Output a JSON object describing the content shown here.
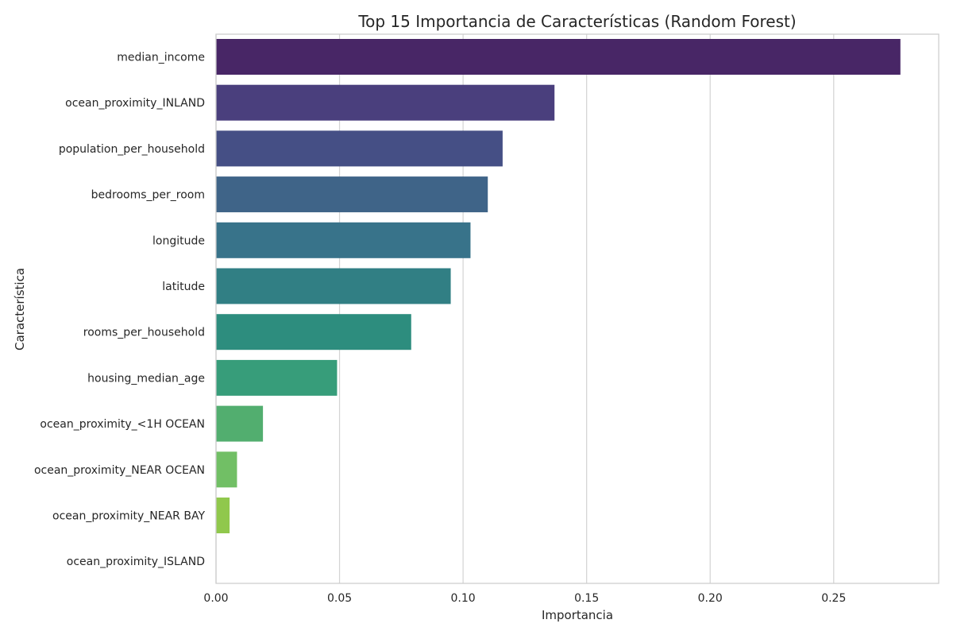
{
  "chart_data": {
    "type": "bar",
    "orientation": "horizontal",
    "title": "Top 15 Importancia de Características (Random Forest)",
    "xlabel": "Importancia",
    "ylabel": "Característica",
    "xlim": [
      0,
      0.2925
    ],
    "xticks": [
      0.0,
      0.05,
      0.1,
      0.15,
      0.2,
      0.25
    ],
    "xtick_labels": [
      "0.00",
      "0.05",
      "0.10",
      "0.15",
      "0.20",
      "0.25"
    ],
    "grid": "vertical",
    "categories": [
      "median_income",
      "ocean_proximity_INLAND",
      "population_per_household",
      "bedrooms_per_room",
      "longitude",
      "latitude",
      "rooms_per_household",
      "housing_median_age",
      "ocean_proximity_<1H OCEAN",
      "ocean_proximity_NEAR OCEAN",
      "ocean_proximity_NEAR BAY",
      "ocean_proximity_ISLAND"
    ],
    "values": [
      0.277,
      0.137,
      0.116,
      0.11,
      0.103,
      0.095,
      0.079,
      0.049,
      0.019,
      0.0085,
      0.0055,
      0.0001
    ],
    "colors": [
      "#482666",
      "#4a3f7d",
      "#454f85",
      "#3f6488",
      "#38738a",
      "#317f84",
      "#2d8d7e",
      "#379d7a",
      "#52ae6f",
      "#71bf65",
      "#90c84c",
      "#b5d545"
    ]
  }
}
